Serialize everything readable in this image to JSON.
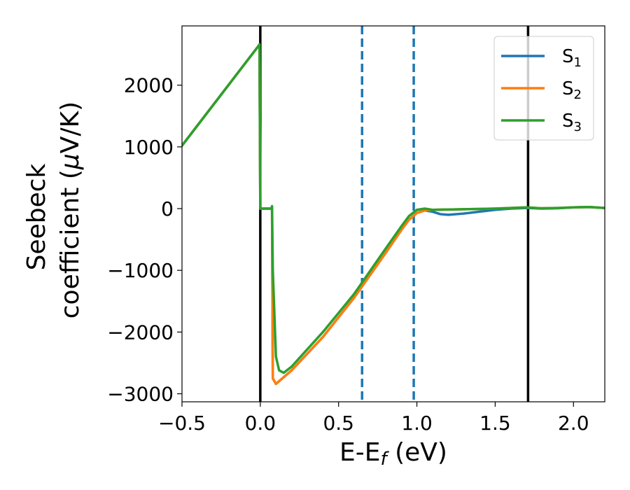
{
  "chart_data": {
    "type": "line",
    "xlabel": "E-E",
    "xlabel_sub": "f",
    "xlabel_unit": " (eV)",
    "ylabel_line1": "Seebeck",
    "ylabel_line2": "coefficient  (",
    "ylabel_mu": "μ",
    "ylabel_unit": "V/K)",
    "xlim": [
      -0.5,
      2.2
    ],
    "ylim": [
      -3130,
      2960
    ],
    "xticks": [
      -0.5,
      0.0,
      0.5,
      1.0,
      1.5,
      2.0
    ],
    "xtick_labels": [
      "−0.5",
      "0.0",
      "0.5",
      "1.0",
      "1.5",
      "2.0"
    ],
    "yticks": [
      -3000,
      -2000,
      -1000,
      0,
      1000,
      2000
    ],
    "ytick_labels": [
      "−3000",
      "−2000",
      "−1000",
      "0",
      "1000",
      "2000"
    ],
    "grid": false,
    "legend_position": "top-right",
    "vertical_lines": [
      {
        "x": 0.0,
        "color": "#000000",
        "style": "solid"
      },
      {
        "x": 1.71,
        "color": "#000000",
        "style": "solid"
      },
      {
        "x": 0.65,
        "color": "#1f77b4",
        "style": "dashed"
      },
      {
        "x": 0.98,
        "color": "#1f77b4",
        "style": "dashed"
      }
    ],
    "series": [
      {
        "name": "S",
        "name_sub": "1",
        "color": "#1f77b4",
        "x": [
          -0.5,
          -0.01,
          -0.005,
          0.0,
          0.005,
          0.07,
          0.075,
          0.08,
          0.1,
          0.2,
          0.4,
          0.6,
          0.8,
          0.9,
          0.95,
          1.0,
          1.05,
          1.1,
          1.15,
          1.2,
          1.3,
          1.4,
          1.5,
          1.6,
          1.7,
          1.8,
          1.9,
          2.0,
          2.1,
          2.2
        ],
        "y": [
          1020,
          2640,
          2660,
          0,
          0,
          0,
          10,
          -2750,
          -2840,
          -2620,
          -2080,
          -1440,
          -720,
          -350,
          -180,
          -70,
          -30,
          -50,
          -90,
          -100,
          -80,
          -50,
          -20,
          0,
          10,
          0,
          5,
          20,
          25,
          10
        ]
      },
      {
        "name": "S",
        "name_sub": "2",
        "color": "#ff7f0e",
        "x": [
          -0.5,
          -0.01,
          -0.005,
          0.0,
          0.005,
          0.07,
          0.075,
          0.08,
          0.1,
          0.2,
          0.4,
          0.6,
          0.8,
          0.9,
          0.95,
          1.0,
          1.05,
          1.1,
          1.2,
          1.3,
          1.4,
          1.5,
          1.6,
          1.7,
          1.8,
          1.9,
          2.0,
          2.1,
          2.2
        ],
        "y": [
          1020,
          2640,
          2660,
          0,
          0,
          0,
          10,
          -2750,
          -2840,
          -2620,
          -2080,
          -1440,
          -720,
          -350,
          -180,
          -70,
          -30,
          -20,
          -15,
          -10,
          -5,
          0,
          10,
          20,
          5,
          10,
          20,
          25,
          10
        ]
      },
      {
        "name": "S",
        "name_sub": "3",
        "color": "#2ca02c",
        "x": [
          -0.5,
          -0.01,
          -0.005,
          0.0,
          0.005,
          0.07,
          0.075,
          0.08,
          0.1,
          0.12,
          0.15,
          0.2,
          0.4,
          0.6,
          0.8,
          0.9,
          0.95,
          1.0,
          1.05,
          1.1,
          1.2,
          1.3,
          1.4,
          1.5,
          1.6,
          1.7,
          1.8,
          1.9,
          2.0,
          2.1,
          2.2
        ],
        "y": [
          1020,
          2640,
          2660,
          0,
          0,
          0,
          40,
          -1000,
          -2400,
          -2620,
          -2660,
          -2560,
          -2000,
          -1380,
          -650,
          -290,
          -120,
          -20,
          0,
          -20,
          -15,
          -10,
          -5,
          0,
          10,
          20,
          5,
          10,
          20,
          25,
          10
        ]
      }
    ]
  }
}
